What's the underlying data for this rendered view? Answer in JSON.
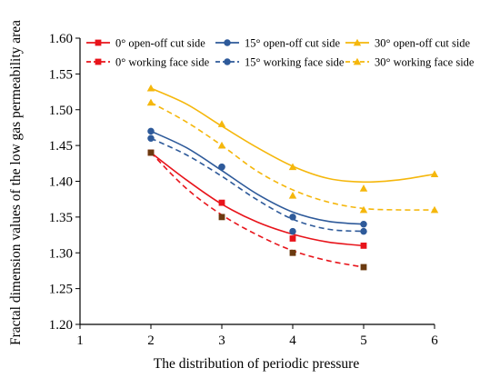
{
  "chart_data": {
    "type": "line",
    "xlabel": "The distribution of periodic pressure",
    "ylabel": "Fractal dimension values of the low gas permeability area",
    "xlim": [
      1,
      6
    ],
    "ylim": [
      1.2,
      1.6
    ],
    "x_ticks": [
      "1",
      "2",
      "3",
      "4",
      "5",
      "6"
    ],
    "y_ticks": [
      "1.20",
      "1.25",
      "1.30",
      "1.35",
      "1.40",
      "1.45",
      "1.50",
      "1.55",
      "1.60"
    ],
    "grid": false,
    "legend_position": "top",
    "series": [
      {
        "name": "0° open-off cut side",
        "color": "#e8141b",
        "marker": "square",
        "dashed": false,
        "x": [
          2,
          3,
          4,
          5
        ],
        "y": [
          1.44,
          1.37,
          1.32,
          1.31
        ],
        "fit": [
          [
            2,
            1.44
          ],
          [
            2.5,
            1.402
          ],
          [
            3,
            1.368
          ],
          [
            3.5,
            1.343
          ],
          [
            4,
            1.326
          ],
          [
            4.5,
            1.315
          ],
          [
            5,
            1.31
          ]
        ]
      },
      {
        "name": "15° open-off cut side",
        "color": "#2e5a9a",
        "marker": "circle",
        "dashed": false,
        "x": [
          2,
          3,
          4,
          5
        ],
        "y": [
          1.47,
          1.42,
          1.35,
          1.34
        ],
        "fit": [
          [
            2,
            1.47
          ],
          [
            2.5,
            1.447
          ],
          [
            3,
            1.415
          ],
          [
            3.5,
            1.382
          ],
          [
            4,
            1.357
          ],
          [
            4.5,
            1.344
          ],
          [
            5,
            1.34
          ]
        ]
      },
      {
        "name": "30° open-off cut side",
        "color": "#f5b70c",
        "marker": "triangle",
        "dashed": false,
        "x": [
          2,
          3,
          4,
          5,
          6
        ],
        "y": [
          1.53,
          1.48,
          1.42,
          1.39,
          1.41
        ],
        "fit": [
          [
            2,
            1.53
          ],
          [
            2.5,
            1.508
          ],
          [
            3,
            1.477
          ],
          [
            3.5,
            1.447
          ],
          [
            4,
            1.421
          ],
          [
            4.5,
            1.404
          ],
          [
            5,
            1.399
          ],
          [
            5.5,
            1.402
          ],
          [
            6,
            1.41
          ]
        ]
      },
      {
        "name": "0° working face side",
        "color": "#e8141b",
        "marker": "square",
        "dashed": true,
        "x": [
          2,
          3,
          4,
          5
        ],
        "y": [
          1.44,
          1.35,
          1.3,
          1.28
        ],
        "fit": [
          [
            2,
            1.44
          ],
          [
            2.5,
            1.39
          ],
          [
            3,
            1.353
          ],
          [
            3.5,
            1.325
          ],
          [
            4,
            1.303
          ],
          [
            4.5,
            1.289
          ],
          [
            5,
            1.28
          ]
        ]
      },
      {
        "name": "15° working face side",
        "color": "#2e5a9a",
        "marker": "circle",
        "dashed": true,
        "x": [
          2,
          3,
          4,
          5
        ],
        "y": [
          1.46,
          1.42,
          1.33,
          1.33
        ],
        "fit": [
          [
            2,
            1.46
          ],
          [
            2.5,
            1.437
          ],
          [
            3,
            1.407
          ],
          [
            3.5,
            1.374
          ],
          [
            4,
            1.347
          ],
          [
            4.5,
            1.333
          ],
          [
            5,
            1.33
          ]
        ]
      },
      {
        "name": "30° working face side",
        "color": "#f5b70c",
        "marker": "triangle",
        "dashed": true,
        "x": [
          2,
          3,
          4,
          5,
          6
        ],
        "y": [
          1.51,
          1.45,
          1.38,
          1.36,
          1.36
        ],
        "fit": [
          [
            2,
            1.51
          ],
          [
            2.5,
            1.483
          ],
          [
            3,
            1.45
          ],
          [
            3.5,
            1.414
          ],
          [
            4,
            1.388
          ],
          [
            4.5,
            1.371
          ],
          [
            5,
            1.362
          ],
          [
            5.5,
            1.36
          ],
          [
            6,
            1.36
          ]
        ]
      }
    ]
  }
}
